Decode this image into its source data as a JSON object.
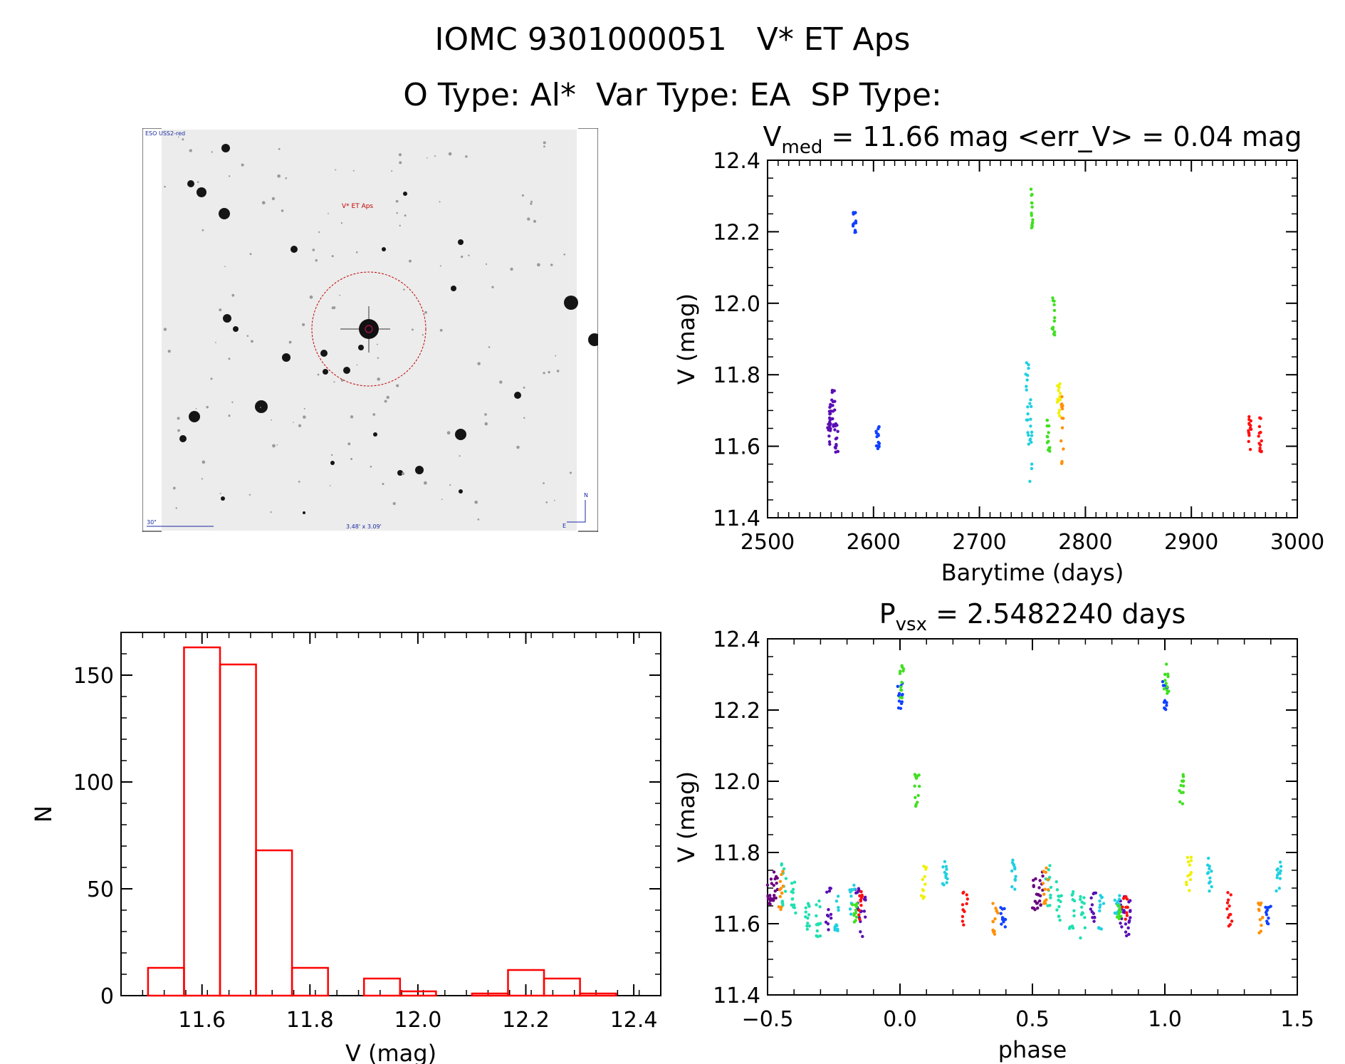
{
  "header": {
    "line1": "IOMC 9301000051   V* ET Aps",
    "line2": "O Type: Al*  Var Type: EA  SP Type:"
  },
  "finder": {
    "survey_label": "ESO USS2-red",
    "target_label": "V* ET Aps",
    "scale_label": "30\"",
    "fov_label": "3.48' x 3.09'",
    "north_label": "N",
    "east_label": "E"
  },
  "colors": {
    "purple": "#5a0fb4",
    "violet": "#6a0080",
    "blue": "#1040ff",
    "cyan": "#20d0e0",
    "aqua": "#20e0b0",
    "green": "#40e020",
    "yellow": "#f0f000",
    "orange": "#ff9000",
    "red": "#ff1010",
    "hist": "#ff0000"
  },
  "chart_data": [
    {
      "id": "lightcurve",
      "type": "scatter",
      "title_prefix": "V",
      "title_sub": "med",
      "title_rest": " = 11.66 mag <err_V> = 0.04 mag",
      "xlabel": "Barytime (days)",
      "ylabel": "V (mag)",
      "xlim": [
        2500,
        3000
      ],
      "ylim": [
        12.4,
        11.4
      ],
      "xticks": [
        "2500",
        "2600",
        "2700",
        "2800",
        "2900",
        "3000"
      ],
      "yticks": [
        "11.4",
        "11.6",
        "11.8",
        "12.0",
        "12.2",
        "12.4"
      ],
      "series": [
        {
          "color": "#5a0fb4",
          "x": [
            2558,
            2560,
            2562,
            2565
          ],
          "y": [
            11.68,
            11.66,
            11.7,
            11.62
          ],
          "spread": 0.06
        },
        {
          "color": "#1040ff",
          "x": [
            2582,
            2604
          ],
          "y": [
            12.22,
            11.62
          ],
          "spread": 0.04
        },
        {
          "color": "#20d0e0",
          "x": [
            2745,
            2748
          ],
          "y": [
            11.73,
            11.62
          ],
          "spread": 0.12
        },
        {
          "color": "#40e020",
          "x": [
            2750,
            2765,
            2770
          ],
          "y": [
            12.27,
            11.63,
            11.97
          ],
          "spread": 0.06
        },
        {
          "color": "#f0f000",
          "x": [
            2775
          ],
          "y": [
            11.73
          ],
          "spread": 0.05
        },
        {
          "color": "#ff9000",
          "x": [
            2778
          ],
          "y": [
            11.65
          ],
          "spread": 0.1
        },
        {
          "color": "#ff1010",
          "x": [
            2955,
            2965
          ],
          "y": [
            11.64,
            11.63
          ],
          "spread": 0.05
        }
      ]
    },
    {
      "id": "histogram",
      "type": "bar",
      "xlabel": "V (mag)",
      "ylabel": "N",
      "xlim": [
        11.45,
        12.45
      ],
      "ylim": [
        0,
        170
      ],
      "xticks": [
        "11.6",
        "11.8",
        "12.0",
        "12.2",
        "12.4"
      ],
      "yticks": [
        "0",
        "50",
        "100",
        "150"
      ],
      "bin_width": 0.0667,
      "bin_start": 11.5,
      "values": [
        13,
        163,
        155,
        68,
        13,
        0,
        8,
        2,
        0,
        1,
        12,
        8,
        1
      ]
    },
    {
      "id": "phased",
      "type": "scatter",
      "title_prefix": "P",
      "title_sub": "vsx",
      "title_rest": " = 2.5482240 days",
      "xlabel": "phase",
      "ylabel": "V (mag)",
      "xlim": [
        -0.5,
        1.5
      ],
      "ylim": [
        12.4,
        11.4
      ],
      "xticks": [
        "−0.5",
        "0.0",
        "0.5",
        "1.0",
        "1.5"
      ],
      "yticks": [
        "11.4",
        "11.6",
        "11.8",
        "12.0",
        "12.2",
        "12.4"
      ],
      "base_series": [
        {
          "color": "#6a0080",
          "x": [
            -0.49,
            -0.47
          ],
          "y": [
            11.68,
            11.7
          ],
          "spread": 0.05
        },
        {
          "color": "#20e0b0",
          "x": [
            -0.44,
            -0.4,
            -0.35,
            -0.31
          ],
          "y": [
            11.71,
            11.66,
            11.63,
            11.62
          ],
          "spread": 0.06
        },
        {
          "color": "#ff9000",
          "x": [
            -0.45
          ],
          "y": [
            11.7
          ],
          "spread": 0.06
        },
        {
          "color": "#5a0fb4",
          "x": [
            -0.27,
            -0.16,
            -0.14
          ],
          "y": [
            11.64,
            11.64,
            11.62
          ],
          "spread": 0.06
        },
        {
          "color": "#20d0e0",
          "x": [
            -0.24,
            -0.18
          ],
          "y": [
            11.63,
            11.66
          ],
          "spread": 0.05
        },
        {
          "color": "#40e020",
          "x": [
            -0.17
          ],
          "y": [
            11.63
          ],
          "spread": 0.03
        },
        {
          "color": "#ff1010",
          "x": [
            -0.15
          ],
          "y": [
            11.65
          ],
          "spread": 0.04
        },
        {
          "color": "#1040ff",
          "x": [
            0.0
          ],
          "y": [
            12.24
          ],
          "spread": 0.04
        },
        {
          "color": "#40e020",
          "x": [
            0.005
          ],
          "y": [
            12.28
          ],
          "spread": 0.05
        },
        {
          "color": "#40e020",
          "x": [
            0.065
          ],
          "y": [
            11.97
          ],
          "spread": 0.05
        },
        {
          "color": "#f0f000",
          "x": [
            0.09
          ],
          "y": [
            11.73
          ],
          "spread": 0.06
        },
        {
          "color": "#20d0e0",
          "x": [
            0.17
          ],
          "y": [
            11.74
          ],
          "spread": 0.05
        },
        {
          "color": "#ff1010",
          "x": [
            0.245
          ],
          "y": [
            11.64
          ],
          "spread": 0.05
        },
        {
          "color": "#ff9000",
          "x": [
            0.36
          ],
          "y": [
            11.62
          ],
          "spread": 0.05
        },
        {
          "color": "#1040ff",
          "x": [
            0.39
          ],
          "y": [
            11.62
          ],
          "spread": 0.03
        },
        {
          "color": "#20d0e0",
          "x": [
            0.43
          ],
          "y": [
            11.74
          ],
          "spread": 0.05
        }
      ]
    }
  ]
}
